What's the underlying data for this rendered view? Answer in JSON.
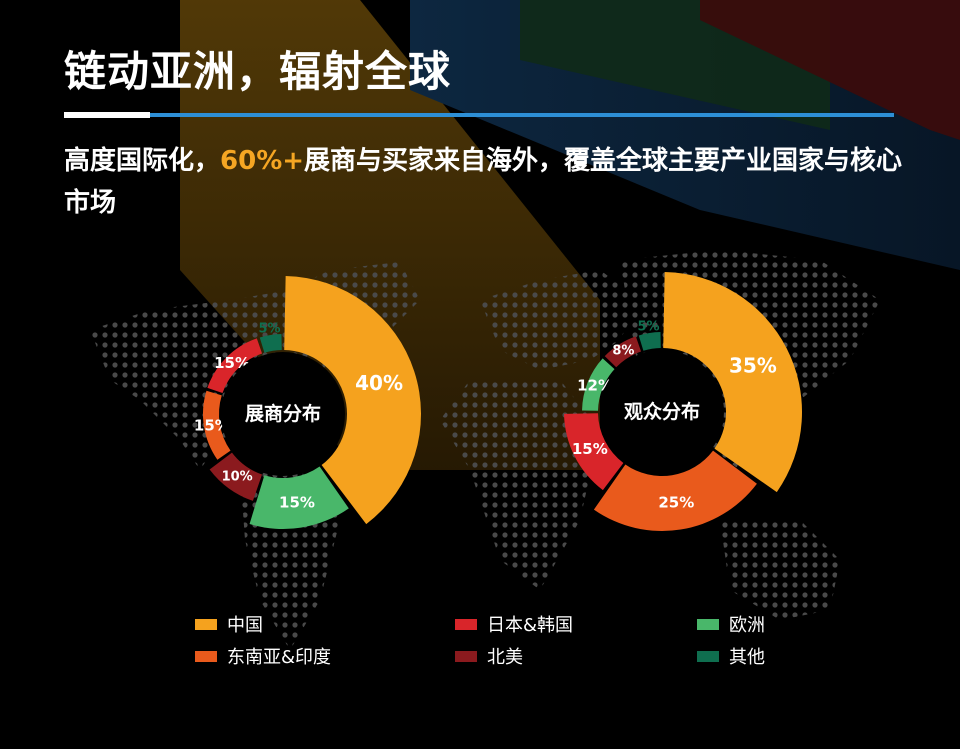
{
  "header": {
    "title": "链动亚洲，辐射全球",
    "subtitle_pre": "高度国际化，",
    "subtitle_highlight": "60%+",
    "subtitle_post": "展商与买家来自海外，覆盖全球主要产业国家与核心市场"
  },
  "colors": {
    "accent_orange": "#f5a623",
    "rule_blue": "#2d8fd6"
  },
  "chart_data": [
    {
      "type": "pie",
      "title": "展商分布",
      "categories": [
        "中国",
        "欧洲",
        "北美",
        "东南亚&印度",
        "日本&韩国",
        "其他"
      ],
      "values": [
        40,
        15,
        10,
        15,
        15,
        5
      ],
      "labels": [
        "40%",
        "15%",
        "10%",
        "15%",
        "15%",
        "5%"
      ],
      "colors": [
        "#f5a21e",
        "#49b76a",
        "#8b1a1e",
        "#e95a1c",
        "#d9252a",
        "#0f6e4f"
      ]
    },
    {
      "type": "pie",
      "title": "观众分布",
      "categories": [
        "中国",
        "东南亚&印度",
        "日本&韩国",
        "欧洲",
        "北美",
        "其他"
      ],
      "values": [
        35,
        25,
        15,
        12,
        8,
        5
      ],
      "labels": [
        "35%",
        "25%",
        "15%",
        "12%",
        "8%",
        "5%"
      ],
      "colors": [
        "#f5a21e",
        "#e95a1c",
        "#d9252a",
        "#49b76a",
        "#8b1a1e",
        "#0f6e4f"
      ]
    }
  ],
  "legend": [
    {
      "label": "中国",
      "color": "#f5a21e"
    },
    {
      "label": "日本&韩国",
      "color": "#d9252a"
    },
    {
      "label": "欧洲",
      "color": "#49b76a"
    },
    {
      "label": "东南亚&印度",
      "color": "#e95a1c"
    },
    {
      "label": "北美",
      "color": "#8b1a1e"
    },
    {
      "label": "其他",
      "color": "#0f6e4f"
    }
  ]
}
